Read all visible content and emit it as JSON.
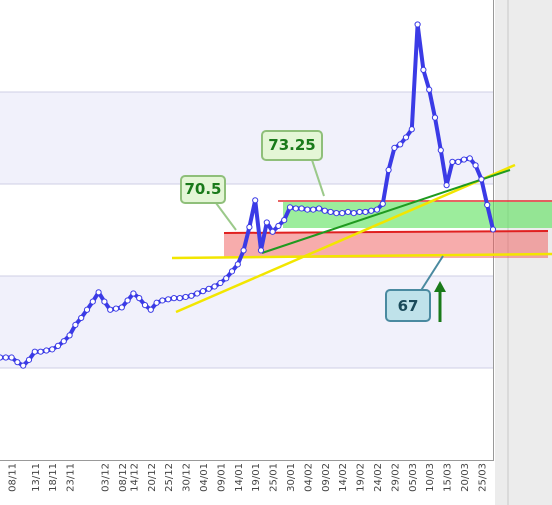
{
  "chart_data": {
    "type": "line",
    "categories": [
      null,
      null,
      "08/11",
      null,
      null,
      null,
      "13/11",
      null,
      null,
      "18/11",
      null,
      null,
      "23/11",
      null,
      null,
      null,
      null,
      null,
      "03/12",
      null,
      null,
      "08/12",
      null,
      "14/12",
      null,
      null,
      "20/12",
      null,
      null,
      "25/12",
      null,
      null,
      "30/12",
      null,
      null,
      "04/01",
      null,
      null,
      "09/01",
      null,
      null,
      "14/01",
      null,
      null,
      "19/01",
      null,
      null,
      "25/01",
      null,
      null,
      "30/01",
      null,
      null,
      "04/02",
      null,
      null,
      "09/02",
      null,
      null,
      "14/02",
      null,
      null,
      "19/02",
      null,
      null,
      "24/02",
      null,
      null,
      "29/02",
      null,
      null,
      "05/03",
      null,
      null,
      "10/03",
      null,
      null,
      "15/03",
      null,
      null,
      "20/03",
      null,
      null,
      "25/03",
      null,
      null
    ],
    "values": [
      59.8,
      59.8,
      59.8,
      59.4,
      59.1,
      59.6,
      60.3,
      60.3,
      60.4,
      60.5,
      60.8,
      61.2,
      61.7,
      62.6,
      63.2,
      63.9,
      64.6,
      65.4,
      64.6,
      63.9,
      64.0,
      64.1,
      64.7,
      65.3,
      64.9,
      64.3,
      63.9,
      64.5,
      64.7,
      64.8,
      64.9,
      64.9,
      65.0,
      65.1,
      65.3,
      65.5,
      65.7,
      65.9,
      66.2,
      66.6,
      67.2,
      67.8,
      69.0,
      71.0,
      73.3,
      69.0,
      71.4,
      70.6,
      71.1,
      71.6,
      72.7,
      72.6,
      72.6,
      72.5,
      72.5,
      72.6,
      72.4,
      72.3,
      72.2,
      72.2,
      72.3,
      72.2,
      72.3,
      72.3,
      72.4,
      72.5,
      73.0,
      75.9,
      77.8,
      78.1,
      78.7,
      79.4,
      88.4,
      84.5,
      82.8,
      80.4,
      77.6,
      74.6,
      76.6,
      76.6,
      76.8,
      76.9,
      76.3,
      75.1,
      72.9,
      70.8
    ],
    "color": "#3b3be6",
    "ylim": [
      51,
      90.5
    ],
    "annotations": [
      70.5,
      73.25,
      67
    ]
  }
}
